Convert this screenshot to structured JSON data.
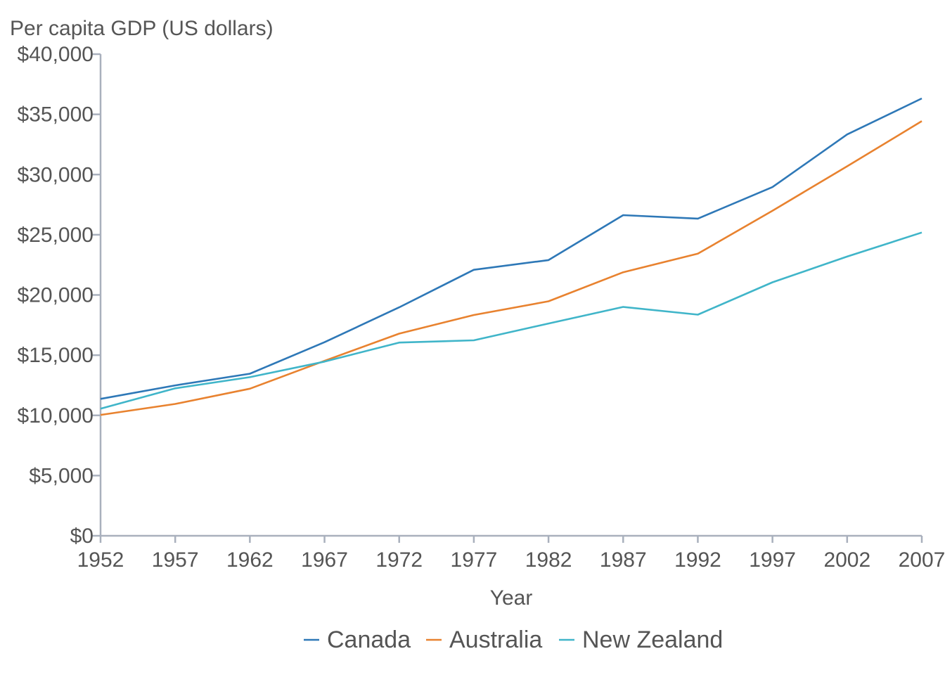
{
  "chart_data": {
    "type": "line",
    "ylabel": "Per capita GDP (US dollars)",
    "xlabel": "Year",
    "x": [
      1952,
      1957,
      1962,
      1967,
      1972,
      1977,
      1982,
      1987,
      1992,
      1997,
      2002,
      2007
    ],
    "xlim": [
      1952,
      2007
    ],
    "ylim": [
      0,
      40000
    ],
    "yticks": [
      0,
      5000,
      10000,
      15000,
      20000,
      25000,
      30000,
      35000,
      40000
    ],
    "ytick_labels": [
      "$0",
      "$5,000",
      "$10,000",
      "$15,000",
      "$20,000",
      "$25,000",
      "$30,000",
      "$35,000",
      "$40,000"
    ],
    "grid": false,
    "legend_position": "bottom",
    "series": [
      {
        "name": "Canada",
        "color": "#2e78b7",
        "values": [
          11367,
          12490,
          13462,
          16077,
          18971,
          22091,
          22899,
          26627,
          26343,
          28955,
          33329,
          36319
        ]
      },
      {
        "name": "Australia",
        "color": "#e8822f",
        "values": [
          10040,
          10950,
          12217,
          14526,
          16789,
          18334,
          19477,
          21889,
          23425,
          26998,
          30688,
          34435
        ]
      },
      {
        "name": "New Zealand",
        "color": "#40b5c9",
        "values": [
          10557,
          12247,
          13176,
          14464,
          16046,
          16234,
          17632,
          19007,
          18363,
          21050,
          23190,
          25185
        ]
      }
    ]
  }
}
